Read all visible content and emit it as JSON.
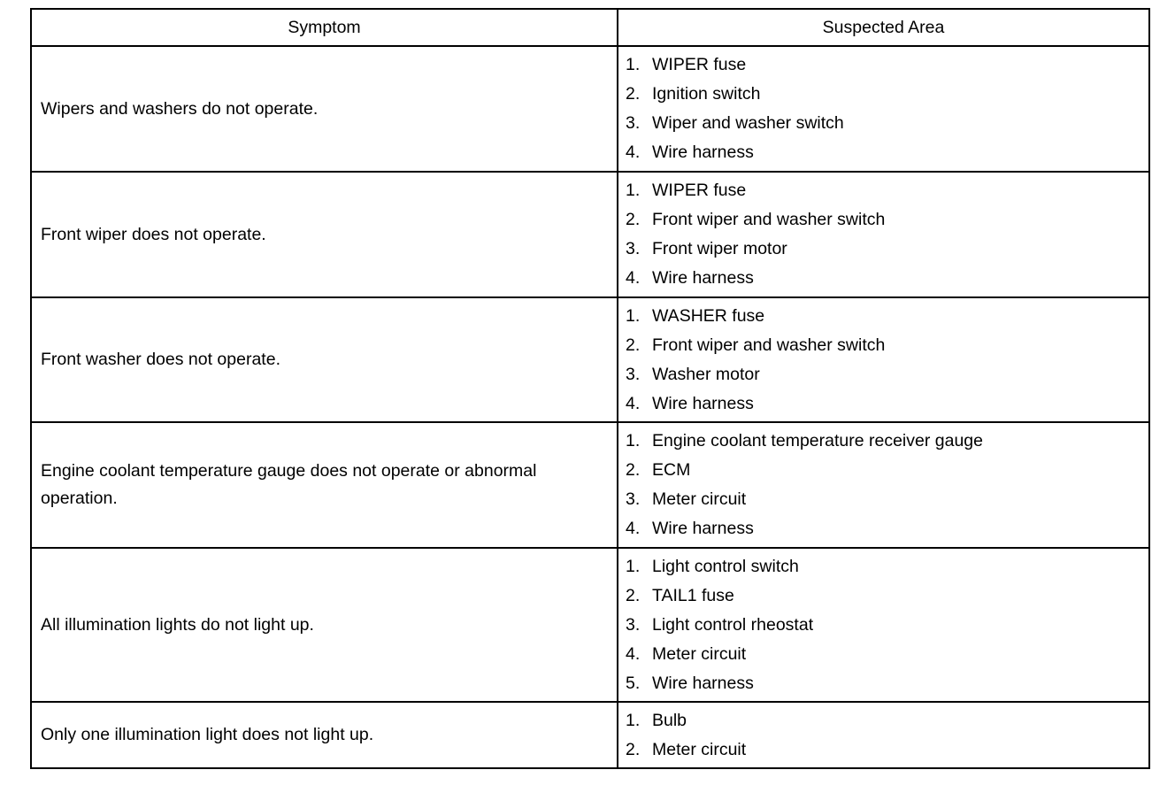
{
  "headers": {
    "symptom": "Symptom",
    "suspected_area": "Suspected Area"
  },
  "rows": [
    {
      "symptom": "Wipers and washers do not operate.",
      "areas": [
        "WIPER fuse",
        "Ignition switch",
        "Wiper and washer switch",
        "Wire harness"
      ]
    },
    {
      "symptom": "Front wiper does not operate.",
      "areas": [
        "WIPER fuse",
        "Front wiper and washer switch",
        "Front wiper motor",
        "Wire harness"
      ]
    },
    {
      "symptom": "Front washer does not operate.",
      "areas": [
        "WASHER fuse",
        "Front wiper and washer switch",
        "Washer motor",
        "Wire harness"
      ]
    },
    {
      "symptom": "Engine coolant temperature gauge does not operate or abnormal operation.",
      "areas": [
        "Engine coolant temperature receiver gauge",
        "ECM",
        "Meter circuit",
        "Wire harness"
      ]
    },
    {
      "symptom": "All illumination lights do not light up.",
      "areas": [
        "Light control switch",
        "TAIL1 fuse",
        "Light control rheostat",
        "Meter circuit",
        "Wire harness"
      ]
    },
    {
      "symptom": "Only one illumination light does not light up.",
      "areas": [
        "Bulb",
        "Meter circuit"
      ]
    }
  ]
}
